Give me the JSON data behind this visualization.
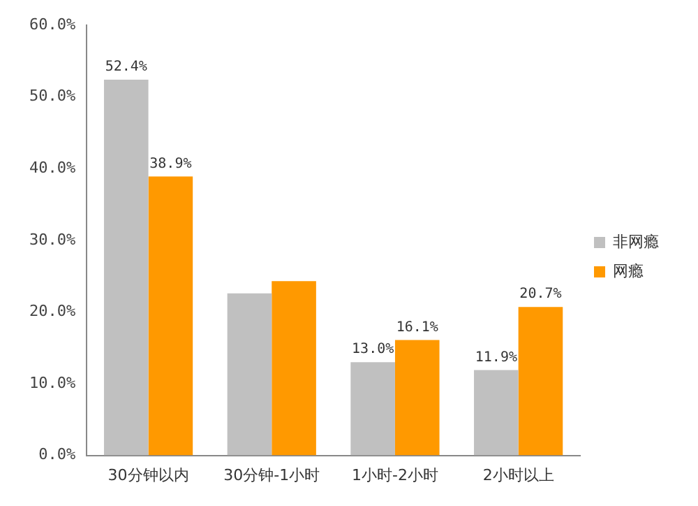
{
  "chart_data": {
    "type": "bar",
    "categories": [
      "30分钟以内",
      "30分钟-1小时",
      "1小时-2小时",
      "2小时以上"
    ],
    "series": [
      {
        "name": "非网瘾",
        "color": "#c0c0c0",
        "values": [
          52.4,
          22.6,
          13.0,
          11.9
        ],
        "value_labels": [
          "52.4%",
          null,
          "13.0%",
          "11.9%"
        ]
      },
      {
        "name": "网瘾",
        "color": "#ff9900",
        "values": [
          38.9,
          24.3,
          16.1,
          20.7
        ],
        "value_labels": [
          "38.9%",
          null,
          "16.1%",
          "20.7%"
        ]
      }
    ],
    "ylim": [
      0,
      60
    ],
    "yticks": [
      {
        "value": 0,
        "label": "0.0%"
      },
      {
        "value": 10,
        "label": "10.0%"
      },
      {
        "value": 20,
        "label": "20.0%"
      },
      {
        "value": 30,
        "label": "30.0%"
      },
      {
        "value": 40,
        "label": "40.0%"
      },
      {
        "value": 50,
        "label": "50.0%"
      },
      {
        "value": 60,
        "label": "60.0%"
      }
    ],
    "grid": false,
    "legend": "right"
  }
}
